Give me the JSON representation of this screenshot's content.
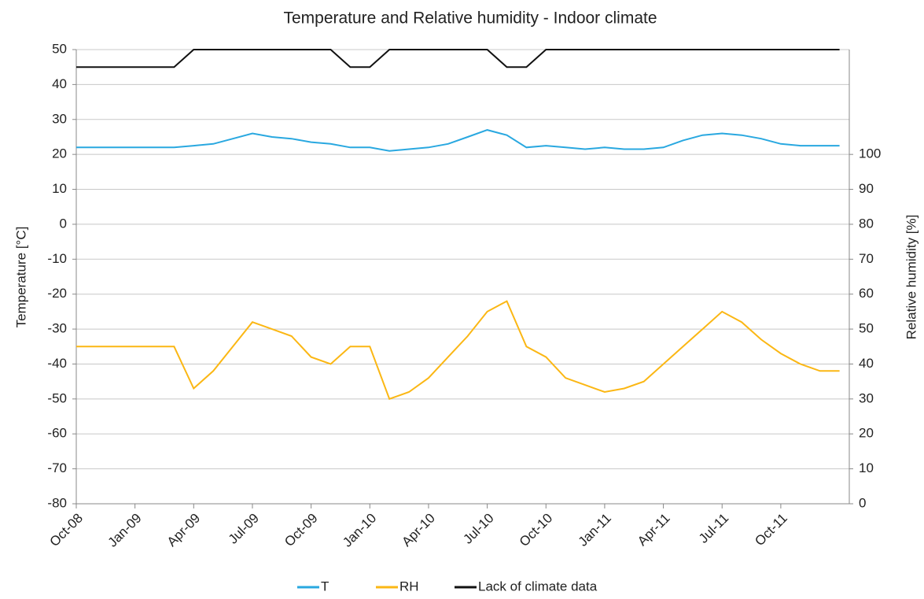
{
  "chart_data": {
    "type": "line",
    "title": "Temperature and Relative humidity - Indoor climate",
    "y_label": "Temperature [°C]",
    "y2_label": "Relative humidity [%]",
    "x": [
      "2008-10",
      "2008-11",
      "2008-12",
      "2009-01",
      "2009-02",
      "2009-03",
      "2009-04",
      "2009-05",
      "2009-06",
      "2009-07",
      "2009-08",
      "2009-09",
      "2009-10",
      "2009-11",
      "2009-12",
      "2010-01",
      "2010-02",
      "2010-03",
      "2010-04",
      "2010-05",
      "2010-06",
      "2010-07",
      "2010-08",
      "2010-09",
      "2010-10",
      "2010-11",
      "2010-12",
      "2011-01",
      "2011-02",
      "2011-03",
      "2011-04",
      "2011-05",
      "2011-06",
      "2011-07",
      "2011-08",
      "2011-09",
      "2011-10",
      "2011-11",
      "2011-12",
      "2012-01"
    ],
    "xlim": [
      "2008-10",
      "2012-01"
    ],
    "xticks": [
      {
        "value": "2008-10",
        "label": "Oct-08"
      },
      {
        "value": "2009-01",
        "label": "Jan-09"
      },
      {
        "value": "2009-04",
        "label": "Apr-09"
      },
      {
        "value": "2009-07",
        "label": "Jul-09"
      },
      {
        "value": "2009-10",
        "label": "Oct-09"
      },
      {
        "value": "2010-01",
        "label": "Jan-10"
      },
      {
        "value": "2010-04",
        "label": "Apr-10"
      },
      {
        "value": "2010-07",
        "label": "Jul-10"
      },
      {
        "value": "2010-10",
        "label": "Oct-10"
      },
      {
        "value": "2011-01",
        "label": "Jan-11"
      },
      {
        "value": "2011-04",
        "label": "Apr-11"
      },
      {
        "value": "2011-07",
        "label": "Jul-11"
      },
      {
        "value": "2011-10",
        "label": "Oct-11"
      }
    ],
    "ylim": [
      -80,
      50
    ],
    "yticks": [
      -80,
      -70,
      -60,
      -50,
      -40,
      -30,
      -20,
      -10,
      0,
      10,
      20,
      30,
      40,
      50
    ],
    "y2lim": [
      0,
      130
    ],
    "y2ticks": [
      0,
      10,
      20,
      30,
      40,
      50,
      60,
      70,
      80,
      90,
      100
    ],
    "grid": true,
    "legend": "bottom",
    "series": [
      {
        "name": "T",
        "color": "#29a8e0",
        "values": [
          22,
          22,
          22,
          22,
          22,
          22,
          22.5,
          23,
          24.5,
          26,
          25,
          24.5,
          23.5,
          23,
          22,
          22,
          21,
          21.5,
          22,
          23,
          25,
          27,
          25.5,
          22,
          22.5,
          22,
          21.5,
          22,
          21.5,
          21.5,
          22,
          24,
          25.5,
          26,
          25.5,
          24.5,
          23,
          22.5,
          22.5,
          22.5
        ]
      },
      {
        "name": "RH",
        "color": "#fbb714",
        "axis": "y2",
        "values": [
          45,
          45,
          45,
          45,
          45,
          45,
          33,
          38,
          45,
          52,
          50,
          48,
          42,
          40,
          45,
          45,
          30,
          32,
          36,
          42,
          48,
          55,
          58,
          45,
          42,
          36,
          34,
          32,
          33,
          35,
          40,
          45,
          50,
          55,
          52,
          47,
          43,
          40,
          38,
          38
        ]
      },
      {
        "name": "Lack of climate data",
        "color": "#111111",
        "values": [
          45,
          45,
          45,
          45,
          45,
          45,
          50,
          50,
          50,
          50,
          50,
          50,
          50,
          50,
          45,
          45,
          50,
          50,
          50,
          50,
          50,
          50,
          45,
          45,
          50,
          50,
          50,
          50,
          50,
          50,
          50,
          50,
          50,
          50,
          50,
          50,
          50,
          50,
          50,
          50
        ]
      }
    ]
  }
}
